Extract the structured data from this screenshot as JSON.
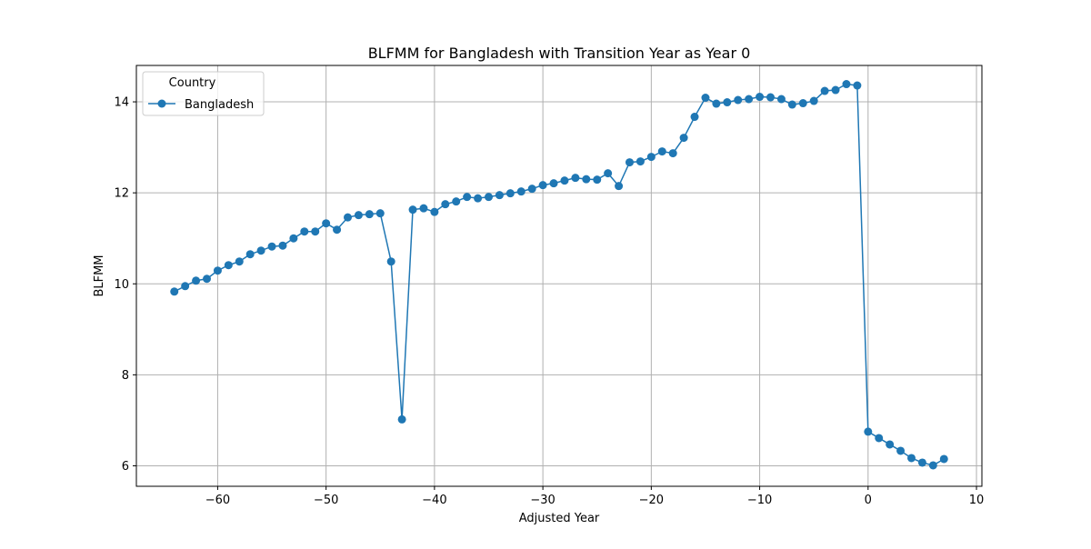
{
  "chart_data": {
    "type": "line",
    "title": "BLFMM for Bangladesh with Transition Year as Year 0",
    "xlabel": "Adjusted Year",
    "ylabel": "BLFMM",
    "xlim": [
      -67.5,
      10.5
    ],
    "ylim": [
      5.55,
      14.8
    ],
    "xticks": [
      -60,
      -50,
      -40,
      -30,
      -20,
      -10,
      0,
      10
    ],
    "xtick_labels": [
      "−60",
      "−50",
      "−40",
      "−30",
      "−20",
      "−10",
      "0",
      "10"
    ],
    "yticks": [
      6,
      8,
      10,
      12,
      14
    ],
    "ytick_labels": [
      "6",
      "8",
      "10",
      "12",
      "14"
    ],
    "grid": true,
    "legend": {
      "title": "Country",
      "placement": "top-left"
    },
    "series": [
      {
        "name": "Bangladesh",
        "color": "#1f77b4",
        "marker": "circle",
        "x": [
          -64,
          -63,
          -62,
          -61,
          -60,
          -59,
          -58,
          -57,
          -56,
          -55,
          -54,
          -53,
          -52,
          -51,
          -50,
          -49,
          -48,
          -47,
          -46,
          -45,
          -44,
          -43,
          -42,
          -41,
          -40,
          -39,
          -38,
          -37,
          -36,
          -35,
          -34,
          -33,
          -32,
          -31,
          -30,
          -29,
          -28,
          -27,
          -26,
          -25,
          -24,
          -23,
          -22,
          -21,
          -20,
          -19,
          -18,
          -17,
          -16,
          -15,
          -14,
          -13,
          -12,
          -11,
          -10,
          -9,
          -8,
          -7,
          -6,
          -5,
          -4,
          -3,
          -2,
          -1,
          0,
          1,
          2,
          3,
          4,
          5,
          6,
          7
        ],
        "y": [
          9.83,
          9.95,
          10.07,
          10.11,
          10.29,
          10.41,
          10.49,
          10.65,
          10.73,
          10.82,
          10.84,
          11.0,
          11.15,
          11.15,
          11.33,
          11.19,
          11.46,
          11.51,
          11.53,
          11.55,
          10.49,
          7.02,
          11.63,
          11.66,
          11.58,
          11.75,
          11.81,
          11.91,
          11.88,
          11.91,
          11.95,
          11.99,
          12.03,
          12.09,
          12.17,
          12.21,
          12.27,
          12.33,
          12.3,
          12.29,
          12.43,
          12.15,
          12.67,
          12.69,
          12.79,
          12.91,
          12.87,
          13.21,
          13.67,
          14.09,
          13.96,
          13.99,
          14.04,
          14.06,
          14.11,
          14.1,
          14.06,
          13.94,
          13.97,
          14.02,
          14.24,
          14.26,
          14.39,
          14.36,
          6.75,
          6.61,
          6.47,
          6.33,
          6.17,
          6.07,
          6.01,
          6.15
        ]
      }
    ]
  }
}
